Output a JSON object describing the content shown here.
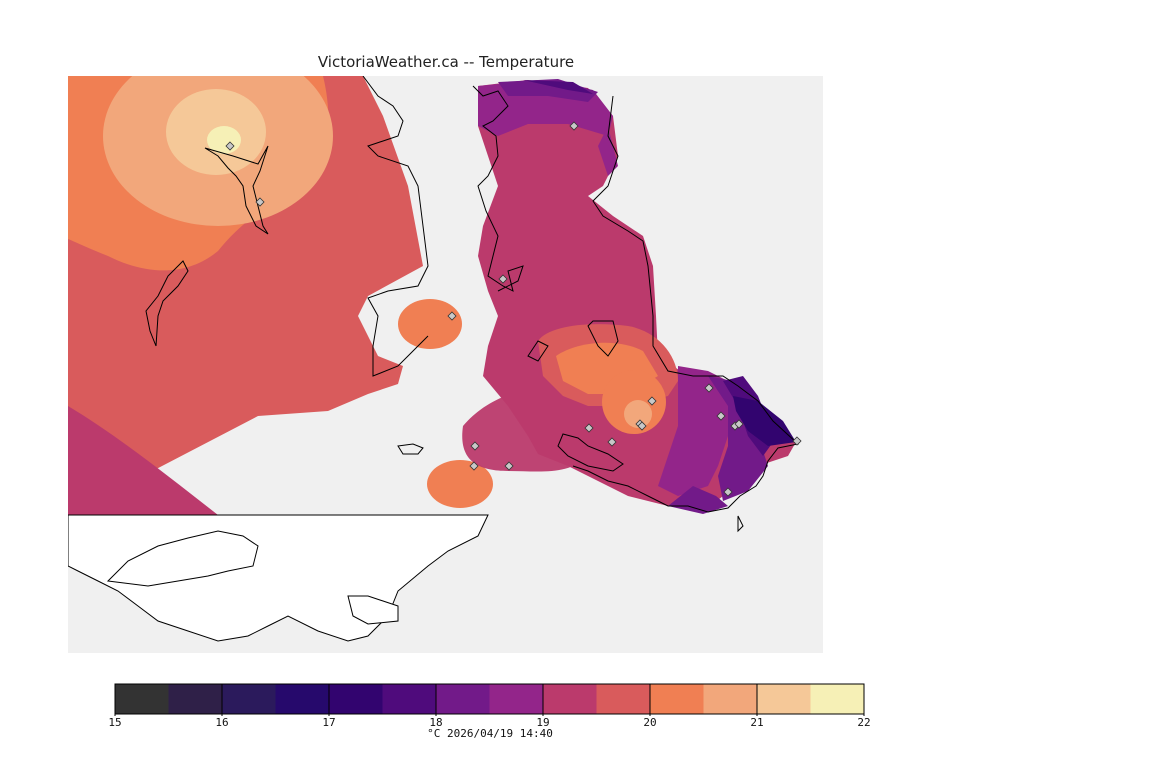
{
  "header": {
    "title": "VictoriaWeather.ca -- Temperature"
  },
  "legend": {
    "colors": [
      "#333333",
      "#2f2048",
      "#2b1a5c",
      "#26096c",
      "#32046f",
      "#4f0b7c",
      "#721a89",
      "#93258a",
      "#bb3a6c",
      "#d95b5c",
      "#f07f53",
      "#f2a77b",
      "#f5c898",
      "#f6f0b6"
    ],
    "tick_labels": [
      "15",
      "16",
      "17",
      "18",
      "19",
      "20",
      "21",
      "22"
    ],
    "unit": "°C",
    "timestamp": "2026/04/19 14:40"
  },
  "map": {
    "background": "#f0f0f0",
    "land_white": "#ffffff",
    "station_marker": "diamond-icon",
    "stations_count_visible": 22
  }
}
